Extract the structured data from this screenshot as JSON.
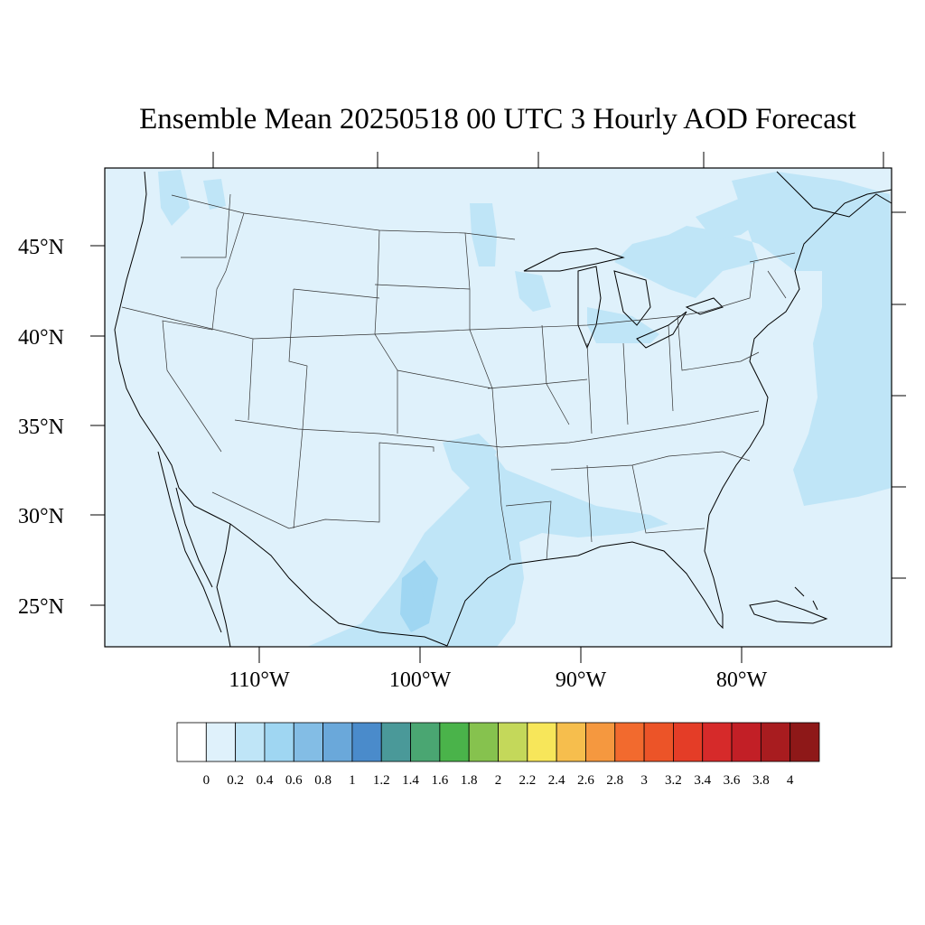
{
  "title": "Ensemble Mean 20250518 00 UTC 3 Hourly AOD Forecast",
  "lat_labels": [
    "45°N",
    "40°N",
    "35°N",
    "30°N",
    "25°N"
  ],
  "lon_labels": [
    "110°W",
    "100°W",
    "90°W",
    "80°W"
  ],
  "colorbar": {
    "labels": [
      "0",
      "0.2",
      "0.4",
      "0.6",
      "0.8",
      "1",
      "1.2",
      "1.4",
      "1.6",
      "1.8",
      "2",
      "2.2",
      "2.4",
      "2.6",
      "2.8",
      "3",
      "3.2",
      "3.4",
      "3.6",
      "3.8",
      "4"
    ],
    "colors": [
      "#ffffff",
      "#dff1fb",
      "#bfe5f7",
      "#9fd6f2",
      "#83bde5",
      "#6aa8da",
      "#4a8bcb",
      "#4a9999",
      "#4aa672",
      "#4ab34a",
      "#86c24e",
      "#c4d85a",
      "#f7e65a",
      "#f6be4d",
      "#f5983f",
      "#f26a2e",
      "#ec5428",
      "#e43d27",
      "#d62a2a",
      "#c21f26",
      "#a81c1f",
      "#8e1818"
    ]
  },
  "map": {
    "background_color": "#dff1fb",
    "plume_color_light": "#bfe5f7",
    "plume_color_mid": "#9fd6f2"
  }
}
